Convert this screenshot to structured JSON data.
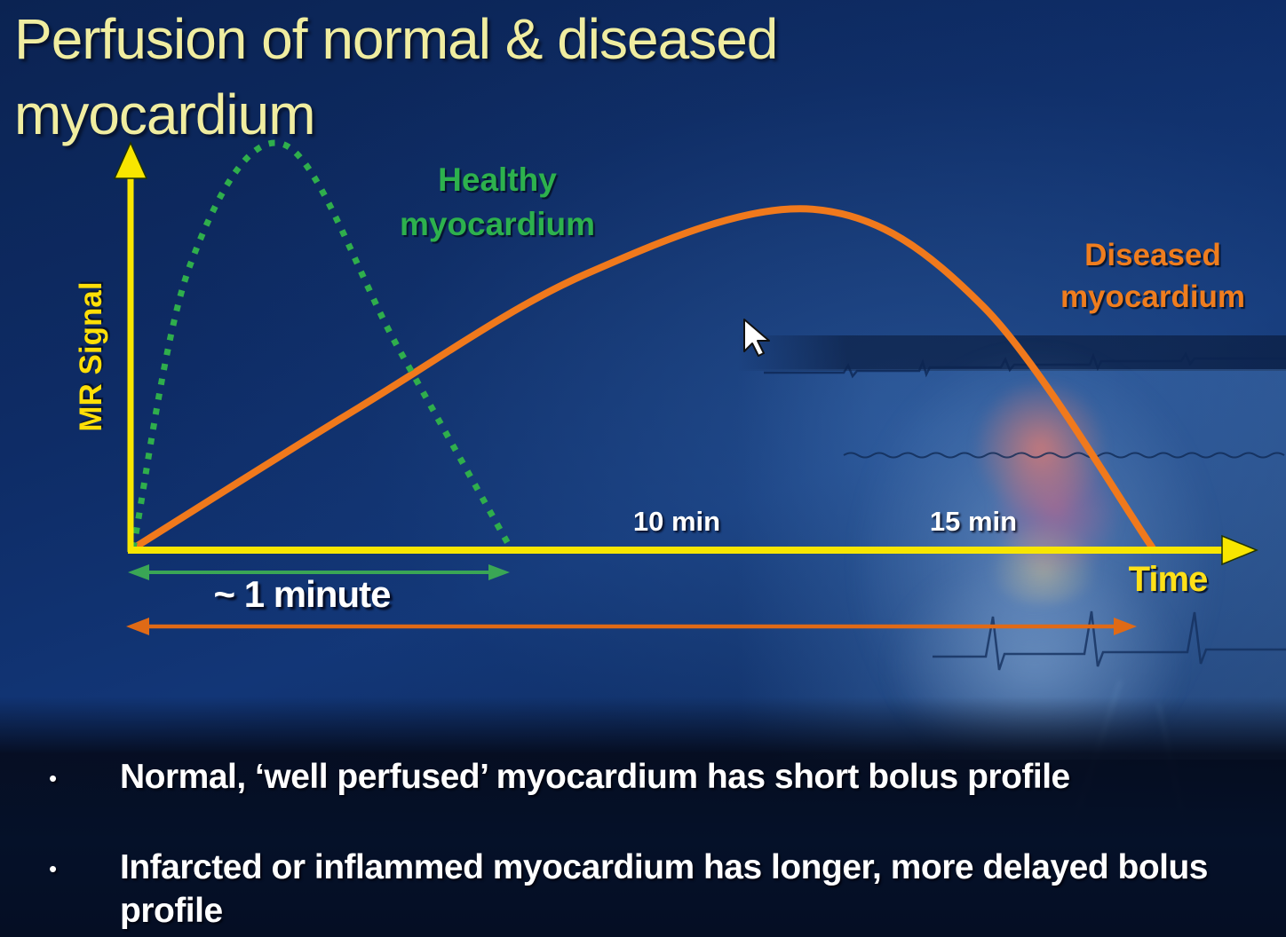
{
  "title": {
    "line1": "Perfusion of normal & diseased",
    "line2": "myocardium"
  },
  "labels": {
    "healthy": {
      "line1": "Healthy",
      "line2": "myocardium"
    },
    "diseased": {
      "line1": "Diseased",
      "line2": "myocardium"
    },
    "mr_signal": "MR Signal",
    "time": "Time"
  },
  "ticks": {
    "t10": "10 min",
    "t15": "15 min"
  },
  "annotations": {
    "one_minute": "~ 1 minute"
  },
  "bullets": [
    "Normal, ‘well perfused’ myocardium has short bolus profile",
    "Infarcted or inflammed myocardium has longer, more delayed bolus profile"
  ],
  "colors": {
    "title_text": "#f0eda0",
    "axis_yellow": "#f8e600",
    "healthy_green": "#2fae4c",
    "diseased_orange": "#f0791c",
    "body_text": "#ffffff",
    "background_navy": "#0e2c66"
  },
  "chart_data": {
    "type": "line",
    "title": "Perfusion of normal & diseased myocardium",
    "xlabel": "Time",
    "ylabel": "MR Signal",
    "x_unit": "minutes",
    "y_unit": "MR signal (arbitrary, schematic)",
    "grid": false,
    "legend_position": "inline curve labels",
    "axis_ticks_x": [
      "10 min",
      "15 min"
    ],
    "ylim": [
      0,
      1
    ],
    "series": [
      {
        "name": "Healthy myocardium",
        "color": "#2fae4c",
        "line_style": "dotted",
        "x": [
          0,
          0.15,
          0.4,
          0.7,
          1.0
        ],
        "y": [
          0,
          0.7,
          1.0,
          0.5,
          0
        ],
        "annotation": "~ 1 minute"
      },
      {
        "name": "Diseased myocardium",
        "color": "#f0791c",
        "line_style": "solid",
        "x": [
          0,
          4,
          8,
          12,
          15,
          18
        ],
        "y": [
          0,
          0.35,
          0.68,
          0.84,
          0.6,
          0
        ],
        "annotation": "longer, more delayed bolus"
      }
    ]
  }
}
